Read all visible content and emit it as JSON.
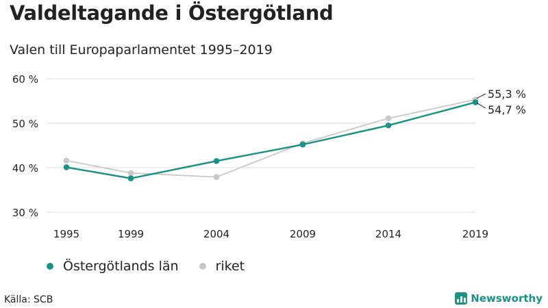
{
  "header": {
    "title": "Valdeltagande i Östergötland",
    "subtitle": "Valen till Europaparlamentet 1995–2019"
  },
  "chart_data": {
    "type": "line",
    "categories": [
      "1995",
      "1999",
      "2004",
      "2009",
      "2014",
      "2019"
    ],
    "yticks": [
      "30 %",
      "40 %",
      "50 %",
      "60 %"
    ],
    "ylim": [
      30,
      60
    ],
    "grid": true,
    "legend_position": "bottom-left",
    "series": [
      {
        "name": "Östergötlands län",
        "color": "#1a9385",
        "values": [
          40.1,
          37.6,
          41.5,
          45.2,
          49.5,
          54.7
        ]
      },
      {
        "name": "riket",
        "color": "#c8c8c8",
        "values": [
          41.6,
          38.8,
          37.9,
          45.5,
          51.1,
          55.3
        ]
      }
    ],
    "end_labels": [
      "54,7 %",
      "55,3 %"
    ]
  },
  "footer": {
    "source": "Källa: SCB",
    "brand": "Newsworthy",
    "brand_color": "#1a9385"
  }
}
